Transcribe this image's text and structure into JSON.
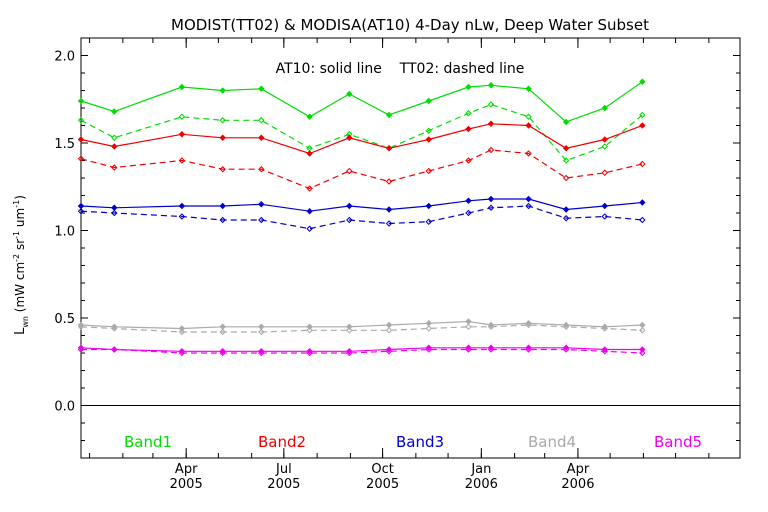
{
  "chart_data": {
    "type": "line",
    "title": "MODIST(TT02) & MODISA(AT10) 4-Day nLw, Deep Water Subset",
    "subtitle": "AT10: solid line    TT02: dashed line",
    "ylabel_main": "L",
    "ylabel_sub": "wn",
    "ylabel_units_a": " (mW cm",
    "ylabel_sup1": "-2",
    "ylabel_units_b": " sr",
    "ylabel_sup2": "-1",
    "ylabel_units_c": " um",
    "ylabel_sup3": "-1",
    "ylabel_units_d": ")",
    "ylim": [
      -0.3,
      2.1
    ],
    "y_ticks": [
      "0.0",
      "0.5",
      "1.0",
      "1.5",
      "2.0"
    ],
    "y_tick_values": [
      0.0,
      0.5,
      1.0,
      1.5,
      2.0
    ],
    "xlim": [
      "2004-12-24",
      "2006-08-30"
    ],
    "x_ticks": [
      {
        "date": "2005-04-01",
        "month": "Apr",
        "year": "2005"
      },
      {
        "date": "2005-07-01",
        "month": "Jul",
        "year": "2005"
      },
      {
        "date": "2005-10-01",
        "month": "Oct",
        "year": "2005"
      },
      {
        "date": "2006-01-01",
        "month": "Jan",
        "year": "2006"
      },
      {
        "date": "2006-04-01",
        "month": "Apr",
        "year": "2006"
      }
    ],
    "x": [
      "2004-12-24",
      "2005-01-24",
      "2005-03-28",
      "2005-05-05",
      "2005-06-10",
      "2005-07-25",
      "2005-08-31",
      "2005-10-07",
      "2005-11-13",
      "2005-12-20",
      "2006-01-10",
      "2006-02-14",
      "2006-03-21",
      "2006-04-26",
      "2006-05-31"
    ],
    "legend_labels": [
      {
        "name": "Band1",
        "color": "#00dd00"
      },
      {
        "name": "Band2",
        "color": "#ee0000"
      },
      {
        "name": "Band3",
        "color": "#0000cc"
      },
      {
        "name": "Band4",
        "color": "#aaaaaa"
      },
      {
        "name": "Band5",
        "color": "#ee00ee"
      }
    ],
    "series": [
      {
        "band": "Band1",
        "line": "solid",
        "color": "#00dd00",
        "values": [
          1.74,
          1.68,
          1.82,
          1.8,
          1.81,
          1.65,
          1.78,
          1.66,
          1.74,
          1.82,
          1.83,
          1.81,
          1.62,
          1.7,
          1.85
        ]
      },
      {
        "band": "Band1",
        "line": "dashed",
        "color": "#00dd00",
        "values": [
          1.63,
          1.53,
          1.65,
          1.63,
          1.63,
          1.47,
          1.55,
          1.47,
          1.57,
          1.67,
          1.72,
          1.65,
          1.4,
          1.48,
          1.66
        ]
      },
      {
        "band": "Band2",
        "line": "solid",
        "color": "#ee0000",
        "values": [
          1.52,
          1.48,
          1.55,
          1.53,
          1.53,
          1.44,
          1.53,
          1.47,
          1.52,
          1.58,
          1.61,
          1.6,
          1.47,
          1.52,
          1.6
        ]
      },
      {
        "band": "Band2",
        "line": "dashed",
        "color": "#ee0000",
        "values": [
          1.41,
          1.36,
          1.4,
          1.35,
          1.35,
          1.24,
          1.34,
          1.28,
          1.34,
          1.4,
          1.46,
          1.44,
          1.3,
          1.33,
          1.38
        ]
      },
      {
        "band": "Band3",
        "line": "solid",
        "color": "#0000cc",
        "values": [
          1.14,
          1.13,
          1.14,
          1.14,
          1.15,
          1.11,
          1.14,
          1.12,
          1.14,
          1.17,
          1.18,
          1.18,
          1.12,
          1.14,
          1.16
        ]
      },
      {
        "band": "Band3",
        "line": "dashed",
        "color": "#0000cc",
        "values": [
          1.11,
          1.1,
          1.08,
          1.06,
          1.06,
          1.01,
          1.06,
          1.04,
          1.05,
          1.1,
          1.13,
          1.14,
          1.07,
          1.08,
          1.06
        ]
      },
      {
        "band": "Band4",
        "line": "solid",
        "color": "#aaaaaa",
        "values": [
          0.46,
          0.45,
          0.44,
          0.45,
          0.45,
          0.45,
          0.45,
          0.46,
          0.47,
          0.48,
          0.46,
          0.47,
          0.46,
          0.45,
          0.46
        ]
      },
      {
        "band": "Band4",
        "line": "dashed",
        "color": "#aaaaaa",
        "values": [
          0.45,
          0.44,
          0.42,
          0.42,
          0.42,
          0.43,
          0.43,
          0.43,
          0.44,
          0.45,
          0.45,
          0.46,
          0.45,
          0.44,
          0.43
        ]
      },
      {
        "band": "Band5",
        "line": "solid",
        "color": "#ee00ee",
        "values": [
          0.33,
          0.32,
          0.31,
          0.31,
          0.31,
          0.31,
          0.31,
          0.32,
          0.33,
          0.33,
          0.33,
          0.33,
          0.33,
          0.32,
          0.32
        ]
      },
      {
        "band": "Band5",
        "line": "dashed",
        "color": "#ee00ee",
        "values": [
          0.32,
          0.32,
          0.3,
          0.3,
          0.3,
          0.3,
          0.3,
          0.31,
          0.32,
          0.32,
          0.32,
          0.32,
          0.32,
          0.31,
          0.3
        ]
      }
    ]
  }
}
